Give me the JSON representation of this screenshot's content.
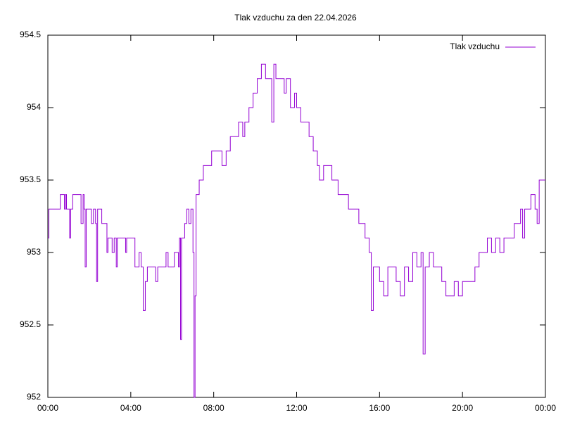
{
  "chart_data": {
    "type": "line",
    "title": "Tlak vzduchu za den 22.04.2026",
    "x": [
      0.0,
      0.05,
      0.5,
      0.6,
      0.8,
      0.85,
      0.9,
      1.0,
      1.05,
      1.1,
      1.2,
      1.5,
      1.6,
      1.7,
      1.75,
      1.8,
      1.85,
      2.0,
      2.1,
      2.2,
      2.3,
      2.35,
      2.4,
      2.6,
      2.8,
      2.85,
      2.9,
      3.0,
      3.1,
      3.2,
      3.3,
      3.35,
      3.6,
      3.75,
      3.8,
      4.0,
      4.2,
      4.4,
      4.5,
      4.6,
      4.7,
      4.8,
      5.0,
      5.2,
      5.3,
      5.6,
      5.7,
      5.8,
      6.0,
      6.1,
      6.2,
      6.3,
      6.35,
      6.4,
      6.45,
      6.6,
      6.7,
      6.8,
      6.9,
      7.0,
      7.05,
      7.1,
      7.15,
      7.3,
      7.5,
      7.7,
      7.9,
      8.2,
      8.4,
      8.6,
      8.8,
      9.0,
      9.2,
      9.4,
      9.5,
      9.7,
      9.9,
      10.1,
      10.3,
      10.5,
      10.7,
      10.8,
      10.9,
      11.0,
      11.2,
      11.4,
      11.5,
      11.7,
      11.9,
      12.0,
      12.2,
      12.4,
      12.6,
      12.8,
      13.0,
      13.1,
      13.3,
      13.5,
      13.7,
      13.9,
      14.0,
      14.3,
      14.5,
      14.8,
      15.0,
      15.3,
      15.5,
      15.6,
      15.7,
      16.0,
      16.2,
      16.4,
      16.6,
      16.8,
      17.0,
      17.2,
      17.4,
      17.6,
      17.8,
      18.0,
      18.1,
      18.2,
      18.4,
      18.6,
      18.8,
      19.0,
      19.2,
      19.4,
      19.6,
      19.8,
      20.0,
      20.3,
      20.6,
      20.8,
      21.0,
      21.2,
      21.4,
      21.6,
      21.8,
      22.0,
      22.3,
      22.5,
      22.7,
      22.8,
      22.9,
      23.0,
      23.2,
      23.3,
      23.5,
      23.6,
      23.7,
      24.0
    ],
    "series": [
      {
        "name": "Tlak vzduchu",
        "color": "#9400d3",
        "values": [
          953.1,
          953.3,
          953.3,
          953.4,
          953.3,
          953.4,
          953.3,
          953.3,
          953.1,
          953.3,
          953.4,
          953.4,
          953.2,
          953.4,
          953.3,
          952.9,
          953.3,
          953.3,
          953.2,
          953.3,
          953.2,
          952.8,
          953.3,
          953.2,
          953.2,
          953.0,
          953.1,
          953.1,
          953.0,
          953.1,
          952.9,
          953.1,
          953.1,
          953.0,
          953.1,
          953.1,
          952.9,
          953.0,
          952.9,
          952.6,
          952.8,
          952.9,
          952.9,
          952.8,
          952.9,
          952.9,
          953.0,
          952.9,
          952.9,
          953.0,
          953.0,
          952.9,
          953.1,
          952.4,
          953.1,
          953.2,
          953.3,
          953.2,
          953.3,
          953.0,
          952.0,
          952.7,
          953.4,
          953.5,
          953.6,
          953.6,
          953.7,
          953.7,
          953.6,
          953.7,
          953.8,
          953.8,
          953.9,
          953.8,
          953.9,
          954.0,
          954.1,
          954.2,
          954.3,
          954.2,
          954.2,
          953.9,
          954.3,
          954.2,
          954.2,
          954.1,
          954.2,
          954.0,
          954.1,
          954.0,
          953.9,
          953.9,
          953.8,
          953.7,
          953.6,
          953.5,
          953.6,
          953.6,
          953.5,
          953.5,
          953.4,
          953.4,
          953.3,
          953.3,
          953.2,
          953.1,
          953.0,
          952.6,
          952.9,
          952.8,
          952.7,
          952.9,
          952.9,
          952.8,
          952.7,
          952.9,
          952.8,
          953.0,
          952.9,
          953.0,
          952.3,
          952.9,
          953.0,
          952.9,
          952.9,
          952.8,
          952.7,
          952.7,
          952.8,
          952.7,
          952.8,
          952.8,
          952.9,
          953.0,
          953.0,
          953.1,
          953.0,
          953.1,
          953.0,
          953.1,
          953.1,
          953.2,
          953.2,
          953.3,
          953.1,
          953.3,
          953.3,
          953.4,
          953.3,
          953.2,
          953.5,
          953.5
        ]
      }
    ],
    "xlim": [
      0,
      24
    ],
    "xticks": [
      {
        "value": 0,
        "label": "00:00"
      },
      {
        "value": 4,
        "label": "04:00"
      },
      {
        "value": 8,
        "label": "08:00"
      },
      {
        "value": 12,
        "label": "12:00"
      },
      {
        "value": 16,
        "label": "16:00"
      },
      {
        "value": 20,
        "label": "20:00"
      },
      {
        "value": 24,
        "label": "00:00"
      }
    ],
    "ylim": [
      952,
      954.5
    ],
    "yticks": [
      952,
      952.5,
      953,
      953.5,
      954,
      954.5
    ],
    "legend": "upper right"
  }
}
